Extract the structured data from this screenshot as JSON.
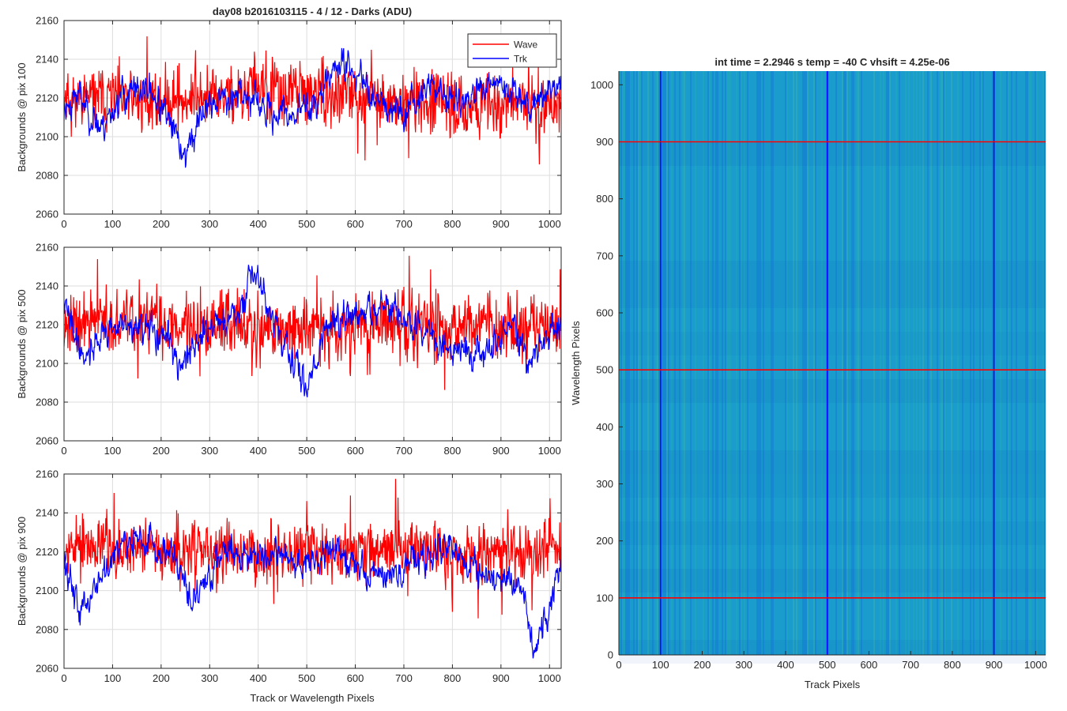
{
  "figure": {
    "suptitle": "day08 b2016103115 - 4 / 12 - Darks (ADU)",
    "xlabel_left": "Track or Wavelength Pixels"
  },
  "chart_data": [
    {
      "type": "line",
      "ylabel": "Backgrounds @ pix 100",
      "xlim": [
        0,
        1024
      ],
      "ylim": [
        2060,
        2160
      ],
      "xticks": [
        "0",
        "100",
        "200",
        "300",
        "400",
        "500",
        "600",
        "700",
        "800",
        "900",
        "1000"
      ],
      "yticks": [
        "2060",
        "2080",
        "2100",
        "2120",
        "2140",
        "2160"
      ],
      "grid": true,
      "legend": {
        "position": "top-right",
        "entries": [
          "Wave",
          "Trk"
        ]
      },
      "series": [
        {
          "name": "Wave",
          "color": "#ff0000",
          "mean": 2121,
          "noise": 9,
          "seed": 11,
          "anchors": [
            [
              0,
              2122
            ],
            [
              200,
              2118
            ],
            [
              400,
              2124
            ],
            [
              600,
              2120
            ],
            [
              800,
              2116
            ],
            [
              1024,
              2118
            ]
          ]
        },
        {
          "name": "Trk",
          "color": "#0000ff",
          "mean": 2120,
          "noise": 4,
          "seed": 23,
          "anchors": [
            [
              0,
              2115
            ],
            [
              30,
              2122
            ],
            [
              75,
              2104
            ],
            [
              120,
              2122
            ],
            [
              180,
              2124
            ],
            [
              220,
              2105
            ],
            [
              250,
              2090
            ],
            [
              290,
              2115
            ],
            [
              360,
              2124
            ],
            [
              420,
              2112
            ],
            [
              470,
              2112
            ],
            [
              520,
              2118
            ],
            [
              570,
              2140
            ],
            [
              600,
              2132
            ],
            [
              660,
              2118
            ],
            [
              700,
              2112
            ],
            [
              750,
              2128
            ],
            [
              800,
              2118
            ],
            [
              860,
              2122
            ],
            [
              900,
              2128
            ],
            [
              960,
              2118
            ],
            [
              1024,
              2128
            ]
          ]
        }
      ]
    },
    {
      "type": "line",
      "ylabel": "Backgrounds @ pix 500",
      "xlim": [
        0,
        1024
      ],
      "ylim": [
        2060,
        2160
      ],
      "xticks": [
        "0",
        "100",
        "200",
        "300",
        "400",
        "500",
        "600",
        "700",
        "800",
        "900",
        "1000"
      ],
      "yticks": [
        "2060",
        "2080",
        "2100",
        "2120",
        "2140",
        "2160"
      ],
      "grid": true,
      "series": [
        {
          "name": "Wave",
          "color": "#ff0000",
          "mean": 2120,
          "noise": 10,
          "seed": 37,
          "anchors": [
            [
              0,
              2122
            ],
            [
              300,
              2120
            ],
            [
              500,
              2118
            ],
            [
              700,
              2120
            ],
            [
              1024,
              2118
            ]
          ]
        },
        {
          "name": "Trk",
          "color": "#0000ff",
          "mean": 2118,
          "noise": 4,
          "seed": 41,
          "anchors": [
            [
              0,
              2130
            ],
            [
              40,
              2104
            ],
            [
              100,
              2120
            ],
            [
              200,
              2115
            ],
            [
              250,
              2100
            ],
            [
              300,
              2120
            ],
            [
              360,
              2125
            ],
            [
              395,
              2148
            ],
            [
              420,
              2128
            ],
            [
              470,
              2100
            ],
            [
              500,
              2090
            ],
            [
              550,
              2124
            ],
            [
              600,
              2122
            ],
            [
              650,
              2130
            ],
            [
              700,
              2122
            ],
            [
              800,
              2108
            ],
            [
              870,
              2105
            ],
            [
              920,
              2120
            ],
            [
              960,
              2100
            ],
            [
              1024,
              2124
            ]
          ]
        }
      ]
    },
    {
      "type": "line",
      "ylabel": "Backgrounds @ pix 900",
      "xlim": [
        0,
        1024
      ],
      "ylim": [
        2060,
        2160
      ],
      "xticks": [
        "0",
        "100",
        "200",
        "300",
        "400",
        "500",
        "600",
        "700",
        "800",
        "900",
        "1000"
      ],
      "yticks": [
        "2060",
        "2080",
        "2100",
        "2120",
        "2140",
        "2160"
      ],
      "grid": true,
      "series": [
        {
          "name": "Wave",
          "color": "#ff0000",
          "mean": 2121,
          "noise": 9,
          "seed": 53,
          "anchors": [
            [
              0,
              2124
            ],
            [
              300,
              2120
            ],
            [
              600,
              2122
            ],
            [
              1024,
              2120
            ]
          ]
        },
        {
          "name": "Trk",
          "color": "#0000ff",
          "mean": 2116,
          "noise": 4,
          "seed": 59,
          "anchors": [
            [
              0,
              2115
            ],
            [
              35,
              2090
            ],
            [
              80,
              2110
            ],
            [
              130,
              2130
            ],
            [
              180,
              2124
            ],
            [
              220,
              2120
            ],
            [
              270,
              2095
            ],
            [
              330,
              2122
            ],
            [
              400,
              2118
            ],
            [
              440,
              2120
            ],
            [
              480,
              2112
            ],
            [
              560,
              2120
            ],
            [
              650,
              2108
            ],
            [
              700,
              2110
            ],
            [
              780,
              2124
            ],
            [
              860,
              2110
            ],
            [
              940,
              2105
            ],
            [
              970,
              2070
            ],
            [
              1000,
              2090
            ],
            [
              1024,
              2115
            ]
          ]
        }
      ]
    },
    {
      "type": "heatmap",
      "title": "int time = 2.2946 s    temp = -40 C    vhsift = 4.25e-06",
      "xlabel": "Track Pixels",
      "ylabel": "Wavelength Pixels",
      "xlim": [
        0,
        1024
      ],
      "ylim": [
        0,
        1024
      ],
      "xticks": [
        "0",
        "100",
        "200",
        "300",
        "400",
        "500",
        "600",
        "700",
        "800",
        "900",
        "1000"
      ],
      "yticks": [
        "0",
        "100",
        "200",
        "300",
        "400",
        "500",
        "600",
        "700",
        "800",
        "900",
        "1000"
      ],
      "colormap_base": "#1a9ccc",
      "vertical_lines": {
        "color": "#0000ff",
        "x": [
          100,
          500,
          900
        ]
      },
      "horizontal_lines": {
        "color": "#ff0000",
        "y": [
          100,
          500,
          900
        ]
      }
    }
  ]
}
